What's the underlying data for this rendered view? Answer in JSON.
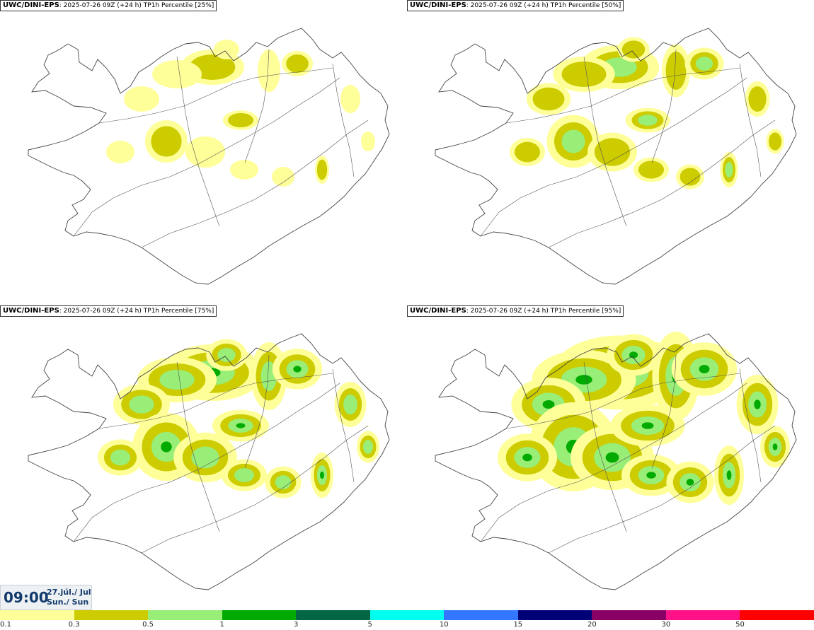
{
  "panels": [
    {
      "model": "UWC/DINI-EPS",
      "info": ": 2025-07-26 09Z (+24 h)",
      "field": "TP1h Percentile",
      "pct": "[25%]",
      "intensity": 1
    },
    {
      "model": "UWC/DINI-EPS",
      "info": ": 2025-07-26 09Z (+24 h)",
      "field": "TP1h Percentile",
      "pct": "[50%]",
      "intensity": 2
    },
    {
      "model": "UWC/DINI-EPS",
      "info": ": 2025-07-26 09Z (+24 h)",
      "field": "TP1h Percentile",
      "pct": "[75%]",
      "intensity": 3
    },
    {
      "model": "UWC/DINI-EPS",
      "info": ": 2025-07-26 09Z (+24 h)",
      "field": "TP1h Percentile",
      "pct": "[95%]",
      "intensity": 4
    }
  ],
  "time": {
    "hour": "09:00",
    "date": "27.júl./ Jul",
    "day": "Sun./ Sun"
  },
  "legend": {
    "colors": [
      "#ffff99",
      "#cccc00",
      "#99ee77",
      "#00aa00",
      "#006644",
      "#00ffee",
      "#3377ff",
      "#000077",
      "#880066",
      "#ff1188",
      "#ff0000"
    ],
    "labels": [
      "0.1",
      "0.3",
      "0.5",
      "1",
      "3",
      "5",
      "10",
      "15",
      "20",
      "30",
      "50"
    ]
  }
}
